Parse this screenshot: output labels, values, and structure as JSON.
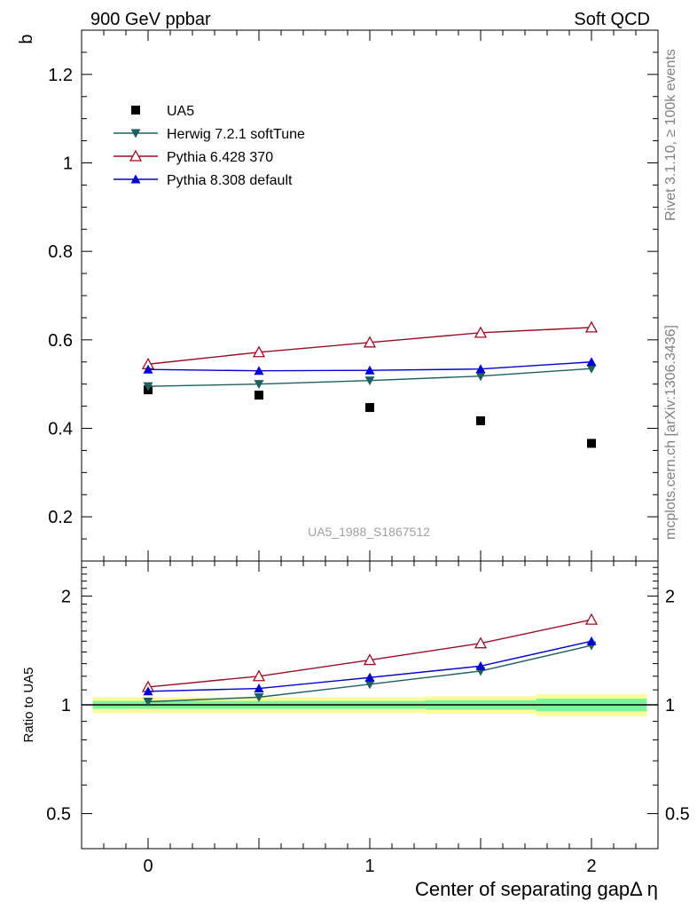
{
  "header": {
    "left_title": "900 GeV ppbar",
    "right_title": "Soft QCD",
    "watermark_rivet": "Rivet 3.1.10, ≥ 100k events",
    "watermark_mcplots": "mcplots.cern.ch [arXiv:1306.3436]",
    "analysis_id": "UA5_1988_S1867512"
  },
  "colors": {
    "ua5": "#000000",
    "herwig": "#1f5f5f",
    "pythia6": "#9b0d24",
    "pythia8": "#0000d0",
    "band_inner": "#7cf59a",
    "band_outer": "#fbfb9a"
  },
  "chart_data": [
    {
      "type": "scatter",
      "panel": "main",
      "ylabel": "b",
      "xlim": [
        -0.3,
        2.3
      ],
      "ylim": [
        0.1,
        1.3
      ],
      "yscale": "linear",
      "yticks": [
        "0.2",
        "0.4",
        "0.6",
        "0.8",
        "1",
        "1.2"
      ],
      "legend_position": "top-left",
      "x": [
        0,
        0.5,
        1,
        1.5,
        2
      ],
      "series": [
        {
          "name": "UA5",
          "marker": "square",
          "values": [
            0.487,
            0.475,
            0.447,
            0.417,
            0.366
          ]
        },
        {
          "name": "Herwig 7.2.1 softTune",
          "marker": "triangle-down",
          "values": [
            0.495,
            0.5,
            0.508,
            0.518,
            0.535
          ]
        },
        {
          "name": "Pythia 6.428 370",
          "marker": "triangle-up-open",
          "values": [
            0.545,
            0.572,
            0.594,
            0.616,
            0.628
          ]
        },
        {
          "name": "Pythia 8.308 default",
          "marker": "triangle-up",
          "values": [
            0.533,
            0.53,
            0.531,
            0.534,
            0.55
          ]
        }
      ]
    },
    {
      "type": "line",
      "panel": "ratio",
      "ylabel": "Ratio to UA5",
      "xlabel": "Center of separating gapΔ η",
      "xlim": [
        -0.3,
        2.3
      ],
      "ylim": [
        0.4,
        2.5
      ],
      "yscale": "log",
      "yticks": [
        "0.5",
        "1",
        "2"
      ],
      "xticks": [
        "0",
        "1",
        "2"
      ],
      "x": [
        0,
        0.5,
        1,
        1.5,
        2
      ],
      "band": {
        "edges": [
          -0.25,
          0.25,
          0.75,
          1.25,
          1.75,
          2.25
        ],
        "inner_half_width": [
          0.025,
          0.025,
          0.025,
          0.03,
          0.04
        ],
        "outer_half_width": [
          0.05,
          0.05,
          0.05,
          0.055,
          0.07
        ]
      },
      "series": [
        {
          "name": "Herwig 7.2.1 softTune",
          "values": [
            1.02,
            1.05,
            1.14,
            1.24,
            1.46
          ]
        },
        {
          "name": "Pythia 6.428 370",
          "values": [
            1.12,
            1.2,
            1.33,
            1.48,
            1.72
          ]
        },
        {
          "name": "Pythia 8.308 default",
          "values": [
            1.09,
            1.11,
            1.19,
            1.28,
            1.5
          ]
        }
      ]
    }
  ]
}
